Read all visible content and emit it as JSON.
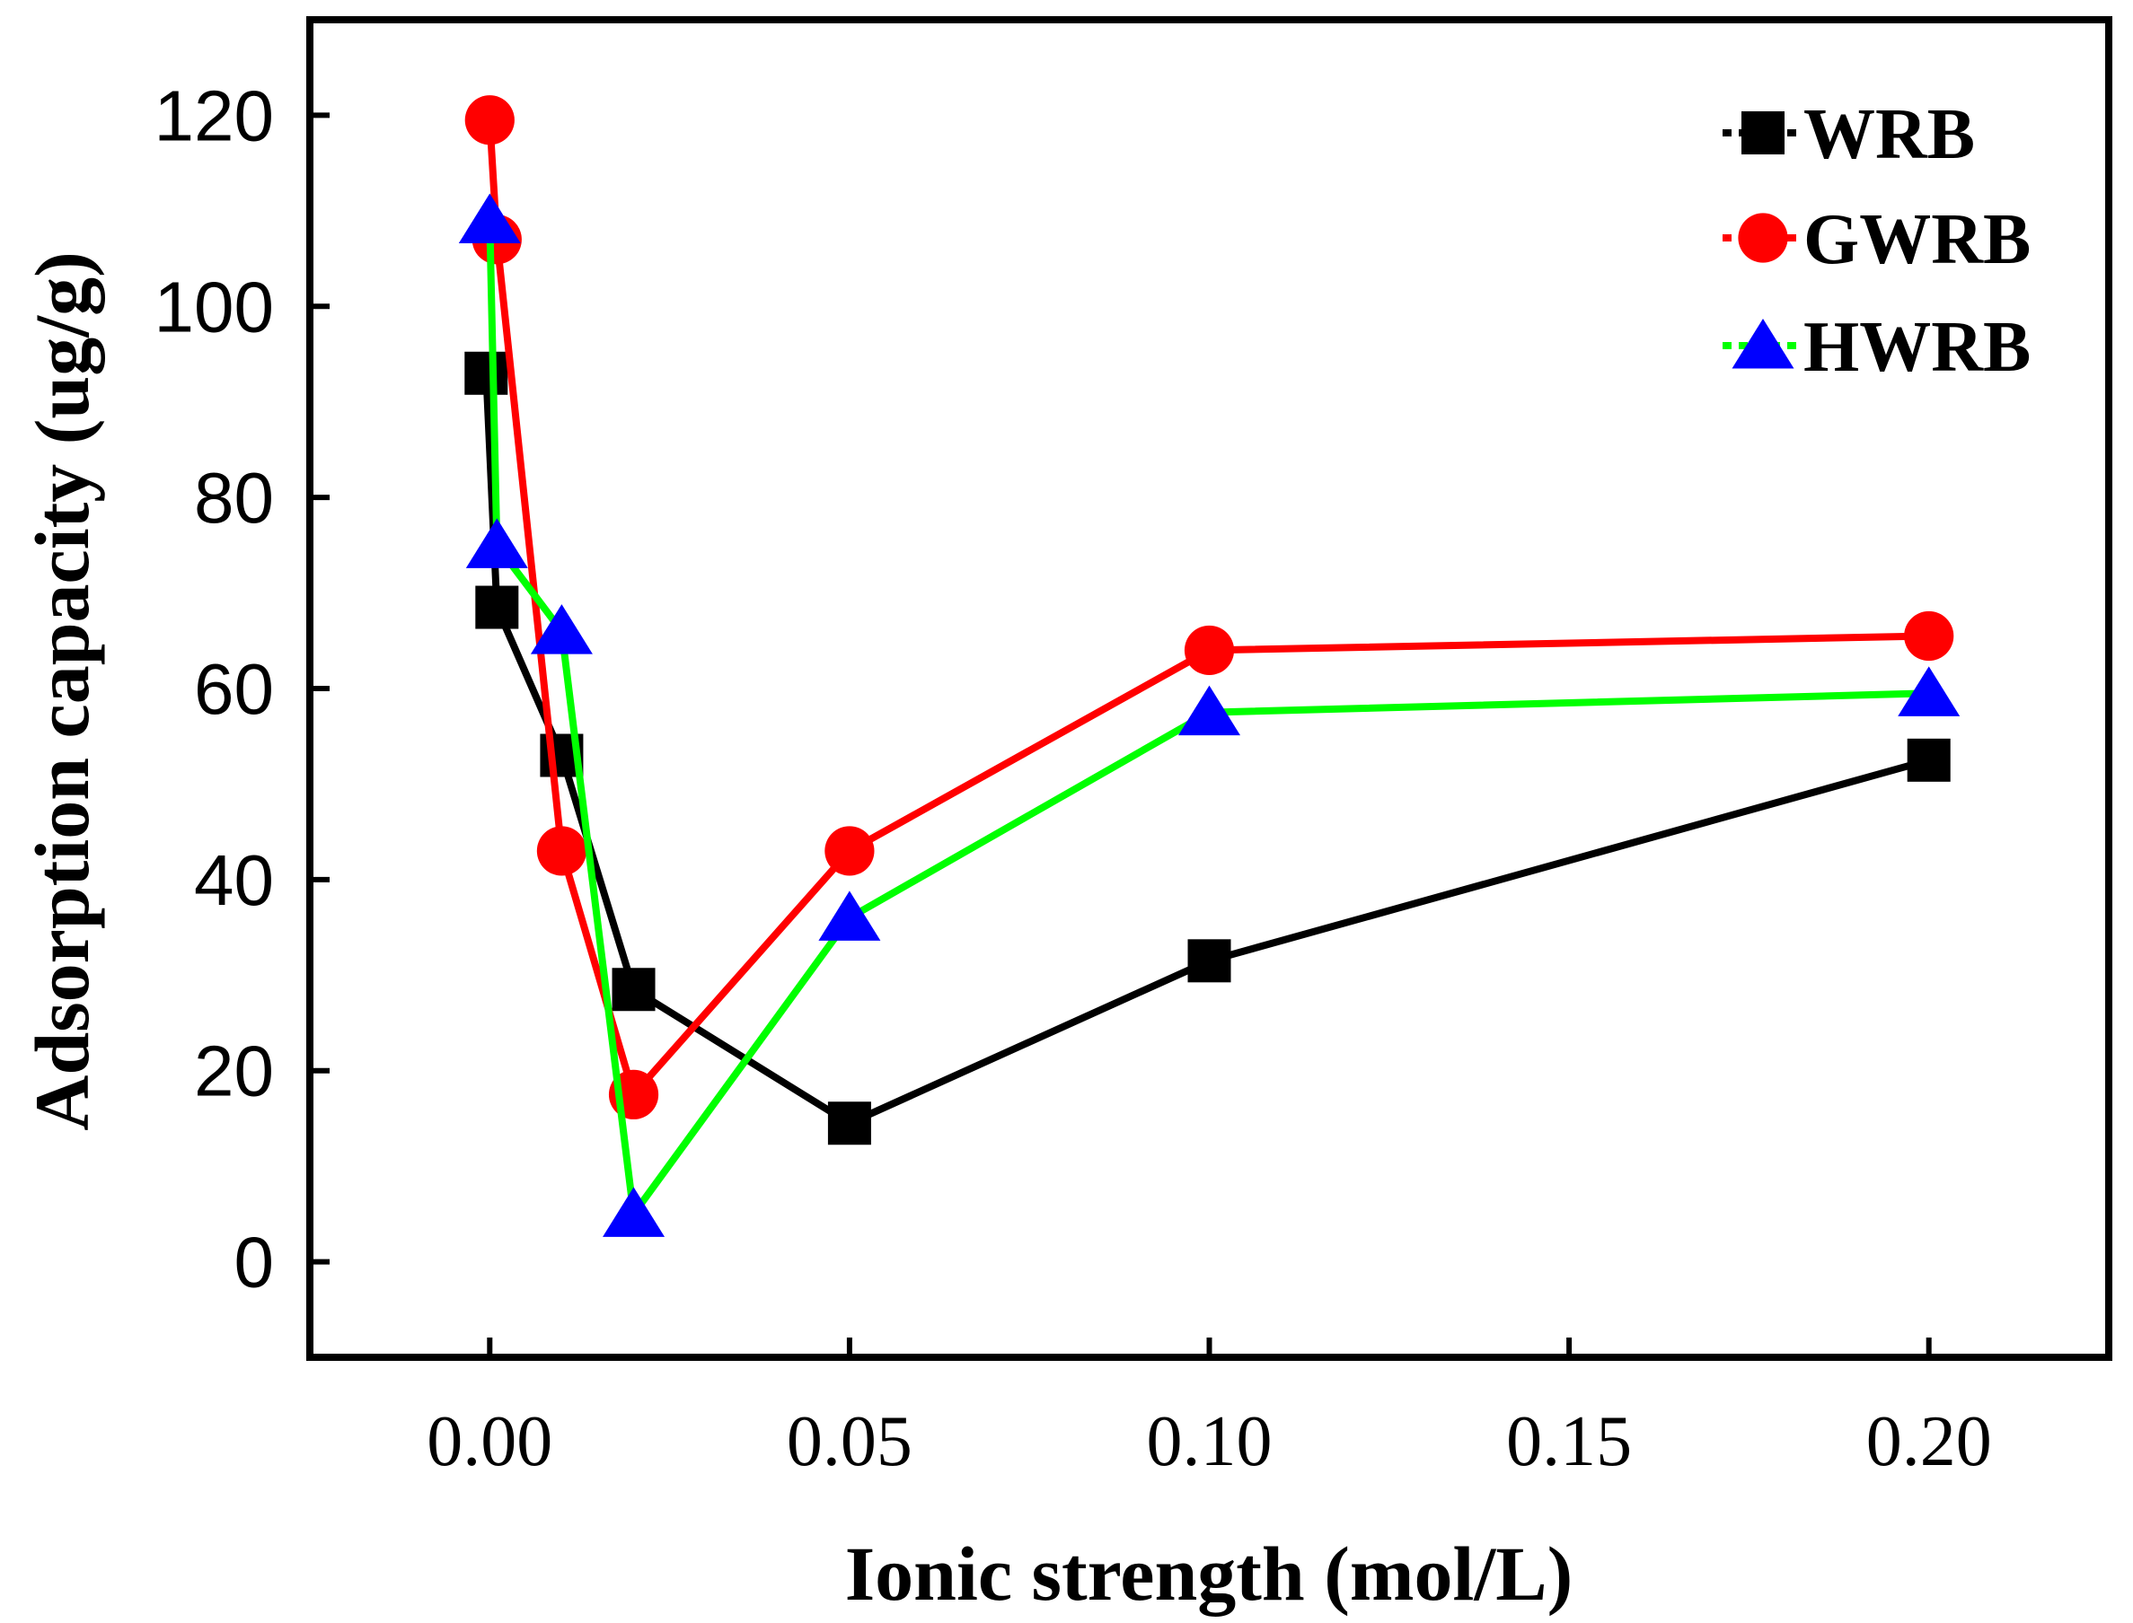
{
  "chart_data": {
    "type": "line",
    "xlabel": "Ionic strength (mol/L)",
    "ylabel": "Adsorption capacity (ug/g)",
    "xlim": [
      -0.025,
      0.225
    ],
    "ylim": [
      -10,
      130
    ],
    "x_ticks": [
      0.0,
      0.05,
      0.1,
      0.15,
      0.2
    ],
    "x_tick_labels": [
      "0.00",
      "0.05",
      "0.10",
      "0.15",
      "0.20"
    ],
    "y_ticks": [
      0,
      20,
      40,
      60,
      80,
      100,
      120
    ],
    "y_tick_labels": [
      "0",
      "20",
      "40",
      "60",
      "80",
      "100",
      "120"
    ],
    "legend_position": "top-right",
    "grid": false,
    "series": [
      {
        "name": "WRB",
        "color": "#000000",
        "marker": "square",
        "points": [
          [
            -0.0005,
            93
          ],
          [
            0.001,
            68.5
          ],
          [
            0.01,
            53
          ],
          [
            0.02,
            28.5
          ],
          [
            0.05,
            14.5
          ],
          [
            0.1,
            31.5
          ],
          [
            0.2,
            52.5
          ]
        ]
      },
      {
        "name": "GWRB",
        "color": "#ff0000",
        "marker": "circle",
        "points": [
          [
            0.0,
            119.5
          ],
          [
            0.001,
            107
          ],
          [
            0.01,
            43
          ],
          [
            0.02,
            17.5
          ],
          [
            0.05,
            43
          ],
          [
            0.1,
            64
          ],
          [
            0.2,
            65.5
          ]
        ]
      },
      {
        "name": "HWRB",
        "color": "#00ff00",
        "marker_color": "#0000ff",
        "marker": "triangle",
        "points": [
          [
            0.0,
            109
          ],
          [
            0.001,
            75
          ],
          [
            0.01,
            66
          ],
          [
            0.02,
            5
          ],
          [
            0.05,
            36
          ],
          [
            0.1,
            57.5
          ],
          [
            0.2,
            59.5
          ]
        ]
      }
    ]
  }
}
